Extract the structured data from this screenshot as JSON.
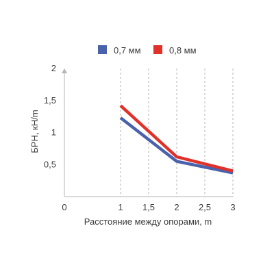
{
  "chart_data": {
    "type": "line",
    "xlabel": "Расстояние между опорами, m",
    "ylabel": "БРН, кН/m",
    "xlim": [
      0,
      3
    ],
    "ylim": [
      0,
      2
    ],
    "x_ticks": [
      0,
      1,
      1.5,
      2,
      2.5,
      3
    ],
    "x_tick_labels": [
      "0",
      "1",
      "1,5",
      "2",
      "2,5",
      "3"
    ],
    "y_ticks": [
      0.5,
      1,
      1.5,
      2
    ],
    "y_tick_labels": [
      "0,5",
      "1",
      "1,5",
      "2"
    ],
    "grid": "vertical dashed",
    "legend_position": "top",
    "series": [
      {
        "name": "0,7 мм",
        "color": "#4a62ac",
        "x": [
          1,
          2,
          3
        ],
        "y": [
          1.23,
          0.55,
          0.37
        ]
      },
      {
        "name": "0,8 мм",
        "color": "#e0312b",
        "x": [
          1,
          2,
          3
        ],
        "y": [
          1.42,
          0.62,
          0.4
        ]
      }
    ]
  }
}
